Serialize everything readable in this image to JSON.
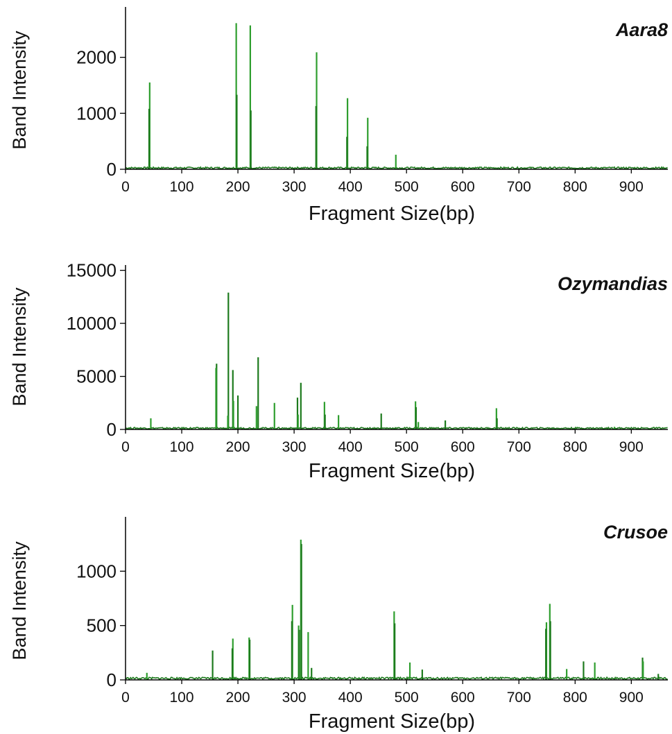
{
  "colors": {
    "trace": "#2e9e2e",
    "trace_dark": "#1d7a1d",
    "axis": "#000000"
  },
  "chart_data": [
    {
      "type": "line",
      "title": "Aara8",
      "xlabel": "Fragment Size(bp)",
      "ylabel": "Band Intensity",
      "xlim": [
        0,
        965
      ],
      "ylim": [
        0,
        2900
      ],
      "xticks": [
        "0",
        "100",
        "200",
        "300",
        "400",
        "500",
        "600",
        "700",
        "800",
        "900"
      ],
      "yticks": [
        "0",
        "1000",
        "2000"
      ],
      "grid": false,
      "baseline": 25,
      "peaks": [
        {
          "x": 43,
          "y": 1550
        },
        {
          "x": 42,
          "y": 1080
        },
        {
          "x": 197,
          "y": 2610
        },
        {
          "x": 198,
          "y": 1330
        },
        {
          "x": 222,
          "y": 2570
        },
        {
          "x": 223,
          "y": 1050
        },
        {
          "x": 340,
          "y": 2090
        },
        {
          "x": 339,
          "y": 1130
        },
        {
          "x": 395,
          "y": 1270
        },
        {
          "x": 394,
          "y": 580
        },
        {
          "x": 431,
          "y": 920
        },
        {
          "x": 430,
          "y": 410
        },
        {
          "x": 481,
          "y": 260
        }
      ]
    },
    {
      "type": "line",
      "title": "Ozymandias",
      "xlabel": "Fragment Size(bp)",
      "ylabel": "Band Intensity",
      "xlim": [
        0,
        965
      ],
      "ylim": [
        0,
        15500
      ],
      "xticks": [
        "0",
        "100",
        "200",
        "300",
        "400",
        "500",
        "600",
        "700",
        "800",
        "900"
      ],
      "yticks": [
        "0",
        "5000",
        "10000",
        "15000"
      ],
      "grid": false,
      "baseline": 120,
      "peaks": [
        {
          "x": 45,
          "y": 1050
        },
        {
          "x": 162,
          "y": 6200
        },
        {
          "x": 161,
          "y": 5800
        },
        {
          "x": 183,
          "y": 12900
        },
        {
          "x": 182,
          "y": 1300
        },
        {
          "x": 191,
          "y": 5600
        },
        {
          "x": 192,
          "y": 2700
        },
        {
          "x": 200,
          "y": 3200
        },
        {
          "x": 233,
          "y": 2200
        },
        {
          "x": 236,
          "y": 6800
        },
        {
          "x": 265,
          "y": 2500
        },
        {
          "x": 306,
          "y": 3000
        },
        {
          "x": 307,
          "y": 1400
        },
        {
          "x": 312,
          "y": 4400
        },
        {
          "x": 354,
          "y": 2600
        },
        {
          "x": 355,
          "y": 1400
        },
        {
          "x": 379,
          "y": 1350
        },
        {
          "x": 455,
          "y": 1500
        },
        {
          "x": 516,
          "y": 2650
        },
        {
          "x": 517,
          "y": 2100
        },
        {
          "x": 521,
          "y": 700
        },
        {
          "x": 569,
          "y": 850
        },
        {
          "x": 660,
          "y": 2000
        },
        {
          "x": 661,
          "y": 1050
        },
        {
          "x": 870,
          "y": 250
        }
      ]
    },
    {
      "type": "line",
      "title": "Crusoe",
      "xlabel": "Fragment Size(bp)",
      "ylabel": "Band Intensity",
      "xlim": [
        0,
        965
      ],
      "ylim": [
        0,
        1500
      ],
      "xticks": [
        "0",
        "100",
        "200",
        "300",
        "400",
        "500",
        "600",
        "700",
        "800",
        "900"
      ],
      "yticks": [
        "0",
        "500",
        "1000"
      ],
      "grid": false,
      "baseline": 15,
      "peaks": [
        {
          "x": 38,
          "y": 65
        },
        {
          "x": 155,
          "y": 270
        },
        {
          "x": 191,
          "y": 380
        },
        {
          "x": 190,
          "y": 290
        },
        {
          "x": 220,
          "y": 390
        },
        {
          "x": 221,
          "y": 370
        },
        {
          "x": 297,
          "y": 690
        },
        {
          "x": 296,
          "y": 540
        },
        {
          "x": 308,
          "y": 500
        },
        {
          "x": 309,
          "y": 460
        },
        {
          "x": 312,
          "y": 1290
        },
        {
          "x": 313,
          "y": 1250
        },
        {
          "x": 325,
          "y": 440
        },
        {
          "x": 331,
          "y": 110
        },
        {
          "x": 478,
          "y": 630
        },
        {
          "x": 479,
          "y": 520
        },
        {
          "x": 506,
          "y": 160
        },
        {
          "x": 528,
          "y": 95
        },
        {
          "x": 749,
          "y": 530
        },
        {
          "x": 748,
          "y": 470
        },
        {
          "x": 755,
          "y": 700
        },
        {
          "x": 756,
          "y": 540
        },
        {
          "x": 785,
          "y": 100
        },
        {
          "x": 815,
          "y": 170
        },
        {
          "x": 835,
          "y": 160
        },
        {
          "x": 920,
          "y": 205
        },
        {
          "x": 921,
          "y": 170
        },
        {
          "x": 948,
          "y": 55
        }
      ]
    }
  ]
}
